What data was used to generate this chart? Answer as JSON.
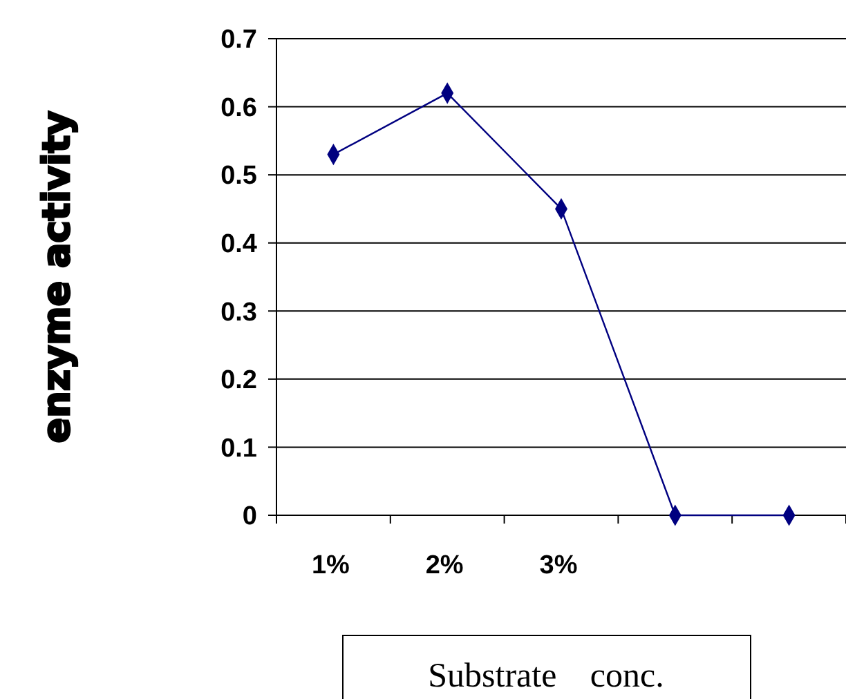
{
  "chart_data": {
    "type": "line",
    "categories": [
      "1%",
      "2%",
      "3%",
      null,
      null
    ],
    "series": [
      {
        "color": "#000080",
        "values": [
          0.53,
          0.62,
          0.45,
          0,
          0
        ]
      }
    ],
    "ylabel": "enzyme activity",
    "xlabel": "Substrate conc.",
    "ylim": [
      0,
      0.7
    ],
    "yticks": [
      0,
      0.1,
      0.2,
      0.3,
      0.4,
      0.5,
      0.6,
      0.7
    ],
    "grid": "y",
    "marker": "diamond",
    "line_style": "solid"
  }
}
